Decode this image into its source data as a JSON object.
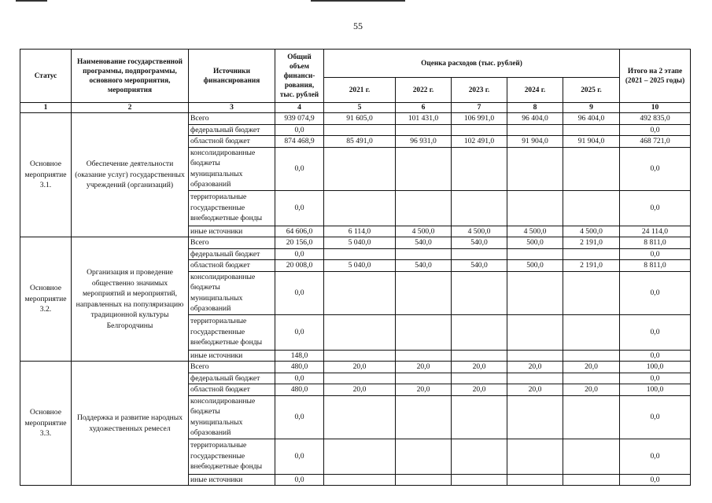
{
  "page_number": "55",
  "headers": {
    "status": "Статус",
    "name": "Наименование государственной программы, подпрограммы, основного мероприятия, мероприятия",
    "sources": "Источники финансирования",
    "total": "Общий объем финанси-рования, тыс. рублей",
    "estimate": "Оценка расходов (тыс. рублей)",
    "years": [
      "2021 г.",
      "2022 г.",
      "2023 г.",
      "2024 г.",
      "2025 г."
    ],
    "itogo": "Итого на 2 этапе (2021 – 2025 годы)"
  },
  "column_numbers": [
    "1",
    "2",
    "3",
    "4",
    "5",
    "6",
    "7",
    "8",
    "9",
    "10"
  ],
  "sources": [
    "Всего",
    "федеральный бюджет",
    "областной бюджет",
    "консолидированные бюджеты муниципальных образований",
    "территориальные государственные внебюджетные фонды",
    "иные источники"
  ],
  "blocks": [
    {
      "status": "Основное мероприятие 3.1.",
      "name": "Обеспечение деятельности (оказание услуг) государственных учреждений (организаций)",
      "rows": [
        [
          "939 074,9",
          "91 605,0",
          "101 431,0",
          "106 991,0",
          "96 404,0",
          "96 404,0",
          "492 835,0"
        ],
        [
          "0,0",
          "",
          "",
          "",
          "",
          "",
          "0,0"
        ],
        [
          "874 468,9",
          "85 491,0",
          "96 931,0",
          "102 491,0",
          "91 904,0",
          "91 904,0",
          "468 721,0"
        ],
        [
          "0,0",
          "",
          "",
          "",
          "",
          "",
          "0,0"
        ],
        [
          "0,0",
          "",
          "",
          "",
          "",
          "",
          "0,0"
        ],
        [
          "64 606,0",
          "6 114,0",
          "4 500,0",
          "4 500,0",
          "4 500,0",
          "4 500,0",
          "24 114,0"
        ]
      ]
    },
    {
      "status": "Основное мероприятие 3.2.",
      "name": "Организация и проведение общественно значимых мероприятий и мероприятий, направленных на популяризацию традиционной культуры Белгородчины",
      "rows": [
        [
          "20 156,0",
          "5 040,0",
          "540,0",
          "540,0",
          "500,0",
          "2 191,0",
          "8 811,0"
        ],
        [
          "0,0",
          "",
          "",
          "",
          "",
          "",
          "0,0"
        ],
        [
          "20 008,0",
          "5 040,0",
          "540,0",
          "540,0",
          "500,0",
          "2 191,0",
          "8 811,0"
        ],
        [
          "0,0",
          "",
          "",
          "",
          "",
          "",
          "0,0"
        ],
        [
          "0,0",
          "",
          "",
          "",
          "",
          "",
          "0,0"
        ],
        [
          "148,0",
          "",
          "",
          "",
          "",
          "",
          "0,0"
        ]
      ]
    },
    {
      "status": "Основное мероприятие 3.3.",
      "name": "Поддержка и развитие народных художественных ремесел",
      "rows": [
        [
          "480,0",
          "20,0",
          "20,0",
          "20,0",
          "20,0",
          "20,0",
          "100,0"
        ],
        [
          "0,0",
          "",
          "",
          "",
          "",
          "",
          "0,0"
        ],
        [
          "480,0",
          "20,0",
          "20,0",
          "20,0",
          "20,0",
          "20,0",
          "100,0"
        ],
        [
          "0,0",
          "",
          "",
          "",
          "",
          "",
          "0,0"
        ],
        [
          "0,0",
          "",
          "",
          "",
          "",
          "",
          "0,0"
        ],
        [
          "0,0",
          "",
          "",
          "",
          "",
          "",
          "0,0"
        ]
      ]
    }
  ]
}
